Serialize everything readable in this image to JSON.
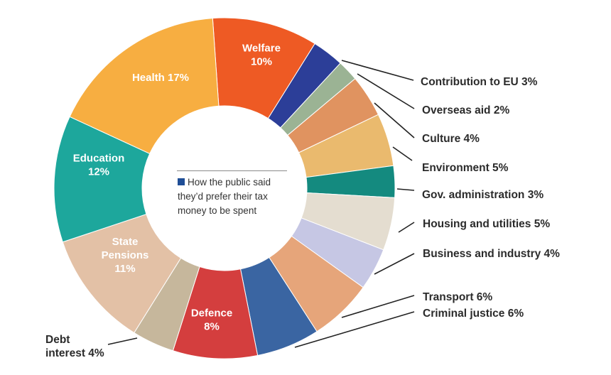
{
  "chart_data": {
    "type": "pie",
    "legend": "How the public said they'd prefer their tax money to be spent",
    "legend_lines": [
      "How the public said",
      "they’d prefer their tax",
      "money to be spent"
    ],
    "legend_color": "#1f4e96",
    "slices": [
      {
        "name": "Welfare",
        "value": 10,
        "color": "#ee5a24",
        "label_lines": [
          "Welfare",
          "10%"
        ],
        "label_pos": "inside",
        "text_color": "#ffffff"
      },
      {
        "name": "Contribution to EU",
        "value": 3,
        "color": "#2c3e98",
        "label_lines": [
          "Contribution to EU 3%"
        ],
        "label_pos": "outside-right"
      },
      {
        "name": "Overseas aid",
        "value": 2,
        "color": "#9bb394",
        "label_lines": [
          "Overseas aid 2%"
        ],
        "label_pos": "outside-right"
      },
      {
        "name": "Culture",
        "value": 4,
        "color": "#e09360",
        "label_lines": [
          "Culture 4%"
        ],
        "label_pos": "outside-right"
      },
      {
        "name": "Environment",
        "value": 5,
        "color": "#eaba6e",
        "label_lines": [
          "Environment 5%"
        ],
        "label_pos": "outside-right"
      },
      {
        "name": "Gov. administration",
        "value": 3,
        "color": "#148a7f",
        "label_lines": [
          "Gov. administration 3%"
        ],
        "label_pos": "outside-right"
      },
      {
        "name": "Housing and utilities",
        "value": 5,
        "color": "#e4ddd0",
        "label_lines": [
          "Housing and utilities 5%"
        ],
        "label_pos": "outside-right"
      },
      {
        "name": "Business and industry",
        "value": 4,
        "color": "#c6c7e4",
        "label_lines": [
          "Business and industry 4%"
        ],
        "label_pos": "outside-right"
      },
      {
        "name": "Transport",
        "value": 6,
        "color": "#e6a57a",
        "label_lines": [
          "Transport 6%"
        ],
        "label_pos": "outside-right"
      },
      {
        "name": "Criminal justice",
        "value": 6,
        "color": "#3a65a2",
        "label_lines": [
          "Criminal justice 6%"
        ],
        "label_pos": "outside-right"
      },
      {
        "name": "Defence",
        "value": 8,
        "color": "#d43e3e",
        "label_lines": [
          "Defence",
          "8%"
        ],
        "label_pos": "inside",
        "text_color": "#ffffff"
      },
      {
        "name": "Debt interest",
        "value": 4,
        "color": "#c6b79c",
        "label_lines": [
          "Debt",
          "interest 4%"
        ],
        "label_pos": "outside-left"
      },
      {
        "name": "State Pensions",
        "value": 11,
        "color": "#e3c1a6",
        "label_lines": [
          "State",
          "Pensions",
          "11%"
        ],
        "label_pos": "inside",
        "text_color": "#ffffff"
      },
      {
        "name": "Education",
        "value": 12,
        "color": "#1da79c",
        "label_lines": [
          "Education",
          "12%"
        ],
        "label_pos": "inside",
        "text_color": "#ffffff"
      },
      {
        "name": "Health",
        "value": 17,
        "color": "#f7ae41",
        "label_lines": [
          "Health 17%"
        ],
        "label_pos": "inside",
        "text_color": "#ffffff"
      }
    ]
  }
}
